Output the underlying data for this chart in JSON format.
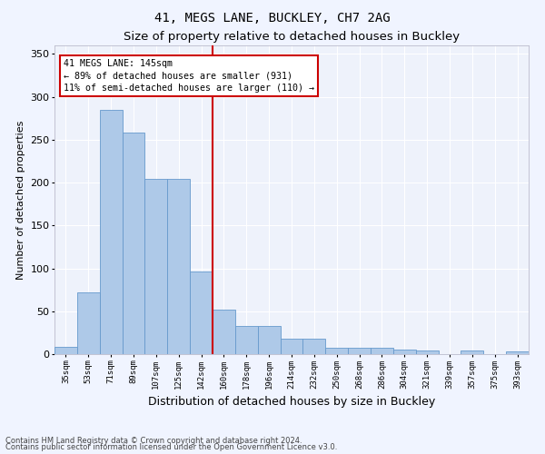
{
  "title": "41, MEGS LANE, BUCKLEY, CH7 2AG",
  "subtitle": "Size of property relative to detached houses in Buckley",
  "xlabel": "Distribution of detached houses by size in Buckley",
  "ylabel": "Number of detached properties",
  "categories": [
    "35sqm",
    "53sqm",
    "71sqm",
    "89sqm",
    "107sqm",
    "125sqm",
    "142sqm",
    "160sqm",
    "178sqm",
    "196sqm",
    "214sqm",
    "232sqm",
    "250sqm",
    "268sqm",
    "286sqm",
    "304sqm",
    "321sqm",
    "339sqm",
    "357sqm",
    "375sqm",
    "393sqm"
  ],
  "values": [
    8,
    72,
    285,
    258,
    204,
    204,
    96,
    52,
    33,
    33,
    18,
    18,
    7,
    7,
    7,
    5,
    4,
    0,
    4,
    0,
    3
  ],
  "bar_color": "#aec9e8",
  "bar_edge_color": "#6699cc",
  "bg_color": "#eef2fb",
  "fig_color": "#f0f4ff",
  "grid_color": "#ffffff",
  "vline_x": 6.5,
  "vline_color": "#cc0000",
  "annotation_lines": [
    "41 MEGS LANE: 145sqm",
    "← 89% of detached houses are smaller (931)",
    "11% of semi-detached houses are larger (110) →"
  ],
  "annotation_box_color": "#cc0000",
  "ylim": [
    0,
    360
  ],
  "yticks": [
    0,
    50,
    100,
    150,
    200,
    250,
    300,
    350
  ],
  "footnote1": "Contains HM Land Registry data © Crown copyright and database right 2024.",
  "footnote2": "Contains public sector information licensed under the Open Government Licence v3.0."
}
